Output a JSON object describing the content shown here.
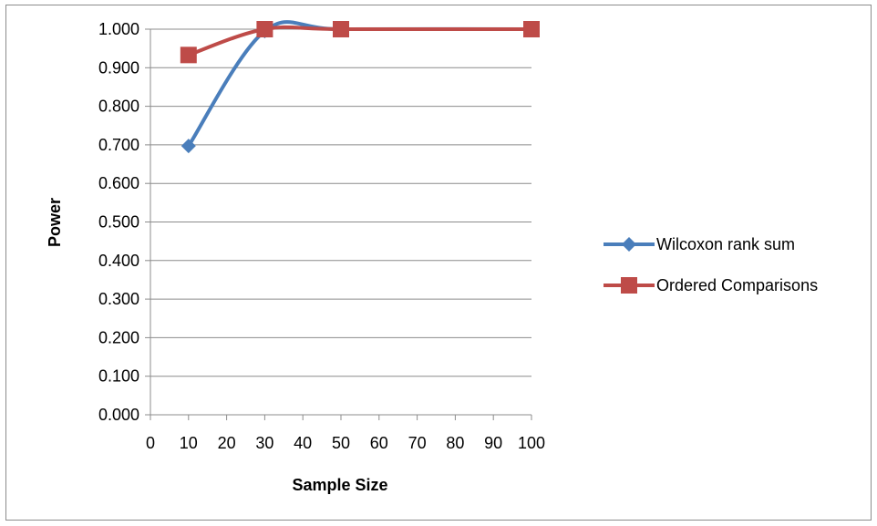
{
  "chart_data": {
    "type": "scatter",
    "xlabel": "Sample Size",
    "ylabel": "Power",
    "xlim": [
      0,
      100
    ],
    "ylim": [
      0,
      1
    ],
    "x_ticks": [
      "0",
      "10",
      "20",
      "30",
      "40",
      "50",
      "60",
      "70",
      "80",
      "90",
      "100"
    ],
    "y_ticks": [
      "0.000",
      "0.100",
      "0.200",
      "0.300",
      "0.400",
      "0.500",
      "0.600",
      "0.700",
      "0.800",
      "0.900",
      "1.000"
    ],
    "grid": "horizontal",
    "legend_position": "right",
    "series": [
      {
        "name": "Wilcoxon rank sum",
        "color": "#4a7ebb",
        "marker": "diamond",
        "smooth": true,
        "x": [
          10,
          30,
          50,
          100
        ],
        "y": [
          0.697,
          0.995,
          1.0,
          1.0
        ]
      },
      {
        "name": "Ordered Comparisons",
        "color": "#be4b48",
        "marker": "square",
        "smooth": true,
        "x": [
          10,
          30,
          50,
          100
        ],
        "y": [
          0.933,
          1.0,
          1.0,
          1.0
        ]
      }
    ]
  }
}
